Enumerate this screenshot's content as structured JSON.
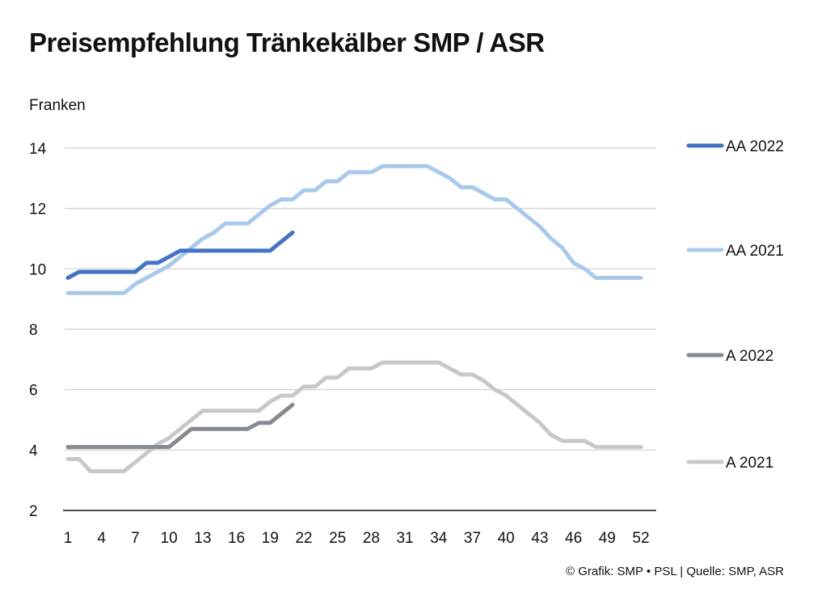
{
  "title": "Preisempfehlung Tränkekälber SMP / ASR",
  "footer": "© Grafik: SMP • PSL | Quelle: SMP, ASR",
  "chart_data": {
    "type": "line",
    "title": "Preisempfehlung Tränkekälber SMP / ASR",
    "ylabel": "Franken",
    "xlabel": "",
    "ylim": [
      2,
      14
    ],
    "yticks": [
      2,
      4,
      6,
      8,
      10,
      12,
      14
    ],
    "xlim": [
      1,
      52
    ],
    "xticks": [
      1,
      4,
      7,
      10,
      13,
      16,
      19,
      22,
      25,
      28,
      31,
      34,
      37,
      40,
      43,
      46,
      49,
      52
    ],
    "grid": "horizontal",
    "legend_position": "right",
    "series": [
      {
        "name": "AA 2022",
        "color": "#4472c4",
        "x": [
          1,
          2,
          3,
          4,
          5,
          6,
          7,
          8,
          9,
          10,
          11,
          12,
          13,
          14,
          15,
          16,
          17,
          18,
          19,
          20,
          21
        ],
        "values": [
          9.7,
          9.9,
          9.9,
          9.9,
          9.9,
          9.9,
          9.9,
          10.2,
          10.2,
          10.4,
          10.6,
          10.6,
          10.6,
          10.6,
          10.6,
          10.6,
          10.6,
          10.6,
          10.6,
          10.9,
          11.2
        ]
      },
      {
        "name": "AA 2021",
        "color": "#a9c9ea",
        "x": [
          1,
          2,
          3,
          4,
          5,
          6,
          7,
          8,
          9,
          10,
          11,
          12,
          13,
          14,
          15,
          16,
          17,
          18,
          19,
          20,
          21,
          22,
          23,
          24,
          25,
          26,
          27,
          28,
          29,
          30,
          31,
          32,
          33,
          34,
          35,
          36,
          37,
          38,
          39,
          40,
          41,
          42,
          43,
          44,
          45,
          46,
          47,
          48,
          49,
          50,
          51,
          52
        ],
        "values": [
          9.2,
          9.2,
          9.2,
          9.2,
          9.2,
          9.2,
          9.5,
          9.7,
          9.9,
          10.1,
          10.4,
          10.7,
          11.0,
          11.2,
          11.5,
          11.5,
          11.5,
          11.8,
          12.1,
          12.3,
          12.3,
          12.6,
          12.6,
          12.9,
          12.9,
          13.2,
          13.2,
          13.2,
          13.4,
          13.4,
          13.4,
          13.4,
          13.4,
          13.2,
          13.0,
          12.7,
          12.7,
          12.5,
          12.3,
          12.3,
          12.0,
          11.7,
          11.4,
          11.0,
          10.7,
          10.2,
          10.0,
          9.7,
          9.7,
          9.7,
          9.7,
          9.7
        ]
      },
      {
        "name": "A 2022",
        "color": "#858b90",
        "x": [
          1,
          2,
          3,
          4,
          5,
          6,
          7,
          8,
          9,
          10,
          11,
          12,
          13,
          14,
          15,
          16,
          17,
          18,
          19,
          20,
          21
        ],
        "values": [
          4.1,
          4.1,
          4.1,
          4.1,
          4.1,
          4.1,
          4.1,
          4.1,
          4.1,
          4.1,
          4.4,
          4.7,
          4.7,
          4.7,
          4.7,
          4.7,
          4.7,
          4.9,
          4.9,
          5.2,
          5.5
        ]
      },
      {
        "name": "A 2021",
        "color": "#c5c9cc",
        "x": [
          1,
          2,
          3,
          4,
          5,
          6,
          7,
          8,
          9,
          10,
          11,
          12,
          13,
          14,
          15,
          16,
          17,
          18,
          19,
          20,
          21,
          22,
          23,
          24,
          25,
          26,
          27,
          28,
          29,
          30,
          31,
          32,
          33,
          34,
          35,
          36,
          37,
          38,
          39,
          40,
          41,
          42,
          43,
          44,
          45,
          46,
          47,
          48,
          49,
          50,
          51,
          52
        ],
        "values": [
          3.7,
          3.7,
          3.3,
          3.3,
          3.3,
          3.3,
          3.6,
          3.9,
          4.2,
          4.4,
          4.7,
          5.0,
          5.3,
          5.3,
          5.3,
          5.3,
          5.3,
          5.3,
          5.6,
          5.8,
          5.8,
          6.1,
          6.1,
          6.4,
          6.4,
          6.7,
          6.7,
          6.7,
          6.9,
          6.9,
          6.9,
          6.9,
          6.9,
          6.9,
          6.7,
          6.5,
          6.5,
          6.3,
          6.0,
          5.8,
          5.5,
          5.2,
          4.9,
          4.5,
          4.3,
          4.3,
          4.3,
          4.1,
          4.1,
          4.1,
          4.1,
          4.1
        ]
      }
    ]
  }
}
